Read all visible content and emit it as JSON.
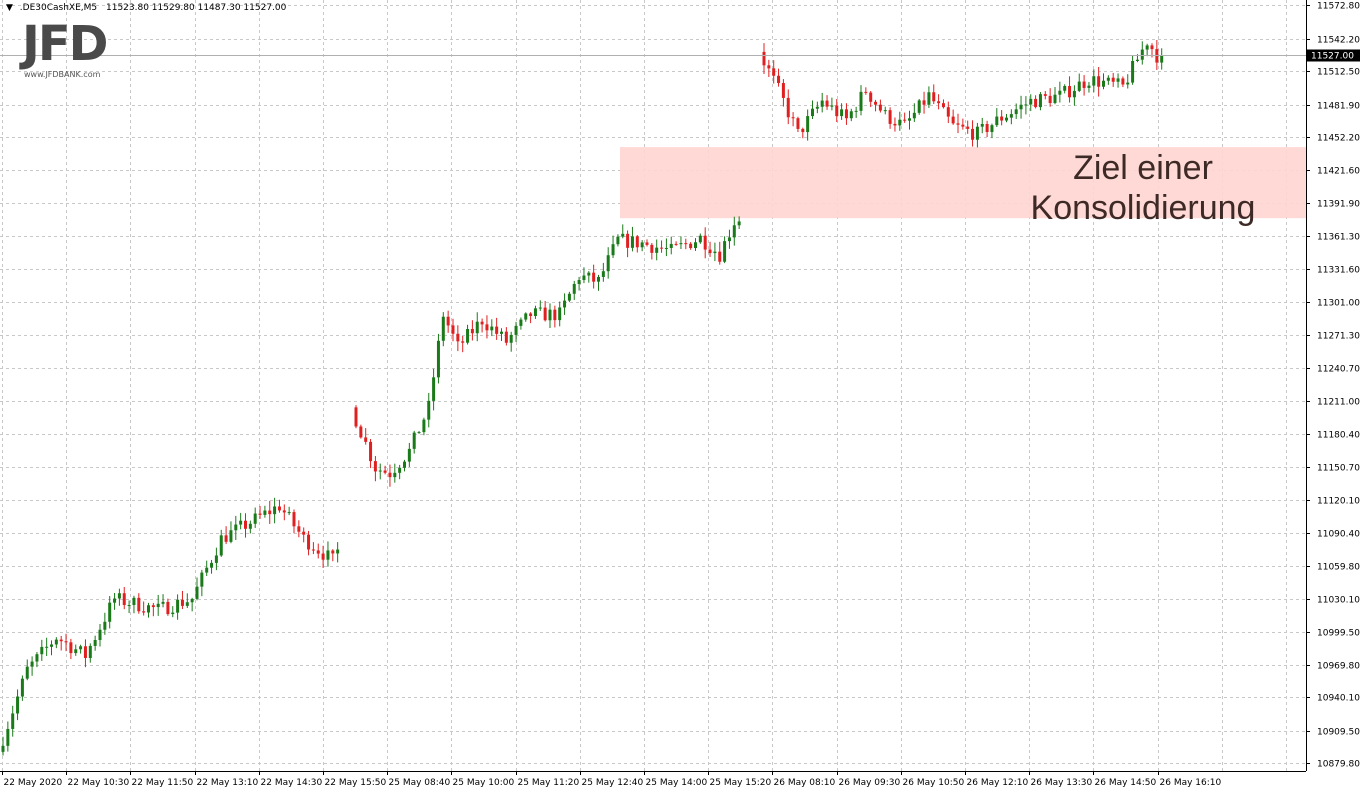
{
  "header": {
    "menu_icon": "triangle-down-icon",
    "symbol": ".DE30CashXE,M5",
    "ohlc": "11523.80 11529.80 11487.30 11527.00"
  },
  "logo": {
    "main": "JFD",
    "sub": "www.JFDBANK.com"
  },
  "annotation": {
    "line1": "Ziel einer",
    "line2": "Konsolidierung",
    "zone_color": "#ffd5d0",
    "zone_top": 11443.0,
    "zone_bottom": 11378.0
  },
  "colors": {
    "bull": "#1a7a1a",
    "bear": "#e02020",
    "grid": "#c8c8c8",
    "price_line": "#b0b0b0"
  },
  "current_price": "11527.00",
  "chart_data": {
    "type": "candlestick",
    "title": "",
    "ylim": [
      10872.5,
      11577.5
    ],
    "y_ticks": [
      "11572.80",
      "11542.20",
      "11512.50",
      "11481.90",
      "11452.20",
      "11421.60",
      "11391.90",
      "11361.30",
      "11331.60",
      "11301.00",
      "11271.30",
      "11240.70",
      "11211.00",
      "11180.40",
      "11150.70",
      "11120.10",
      "11090.40",
      "11059.80",
      "11030.10",
      "10999.50",
      "10969.80",
      "10940.10",
      "10909.50",
      "10879.80"
    ],
    "x_ticks": [
      "22 May 2020",
      "22 May 10:30",
      "22 May 11:50",
      "22 May 13:10",
      "22 May 14:30",
      "22 May 15:50",
      "25 May 08:40",
      "25 May 10:00",
      "25 May 11:20",
      "25 May 12:40",
      "25 May 14:00",
      "25 May 15:20",
      "26 May 08:10",
      "26 May 09:30",
      "26 May 10:50",
      "26 May 12:10",
      "26 May 13:30",
      "26 May 14:50",
      "26 May 16:10"
    ],
    "grid": true,
    "sessions": [
      {
        "name": "22 May",
        "start": 10890,
        "end": 11075,
        "bars": 70,
        "waypoints": [
          [
            0,
            10890
          ],
          [
            6,
            10965
          ],
          [
            12,
            10995
          ],
          [
            18,
            10978
          ],
          [
            24,
            11030
          ],
          [
            33,
            11020
          ],
          [
            40,
            11030
          ],
          [
            46,
            11085
          ],
          [
            54,
            11105
          ],
          [
            58,
            11115
          ],
          [
            63,
            11085
          ],
          [
            69,
            11065
          ]
        ]
      },
      {
        "name": "25 May",
        "start": 11205,
        "end": 11375,
        "bars": 80,
        "waypoints": [
          [
            0,
            11205
          ],
          [
            5,
            11150
          ],
          [
            8,
            11145
          ],
          [
            12,
            11165
          ],
          [
            16,
            11205
          ],
          [
            19,
            11290
          ],
          [
            22,
            11260
          ],
          [
            27,
            11285
          ],
          [
            32,
            11265
          ],
          [
            37,
            11290
          ],
          [
            43,
            11290
          ],
          [
            47,
            11325
          ],
          [
            51,
            11320
          ],
          [
            55,
            11358
          ],
          [
            60,
            11355
          ],
          [
            66,
            11348
          ],
          [
            72,
            11360
          ],
          [
            76,
            11345
          ],
          [
            79,
            11375
          ]
        ]
      },
      {
        "name": "26 May",
        "start": 11530,
        "end": 11527,
        "bars": 83,
        "waypoints": [
          [
            0,
            11530
          ],
          [
            4,
            11495
          ],
          [
            8,
            11455
          ],
          [
            13,
            11485
          ],
          [
            18,
            11468
          ],
          [
            22,
            11495
          ],
          [
            26,
            11472
          ],
          [
            30,
            11462
          ],
          [
            35,
            11490
          ],
          [
            40,
            11462
          ],
          [
            45,
            11455
          ],
          [
            50,
            11470
          ],
          [
            56,
            11485
          ],
          [
            62,
            11490
          ],
          [
            68,
            11505
          ],
          [
            75,
            11498
          ],
          [
            80,
            11540
          ],
          [
            82,
            11527
          ]
        ]
      }
    ]
  }
}
